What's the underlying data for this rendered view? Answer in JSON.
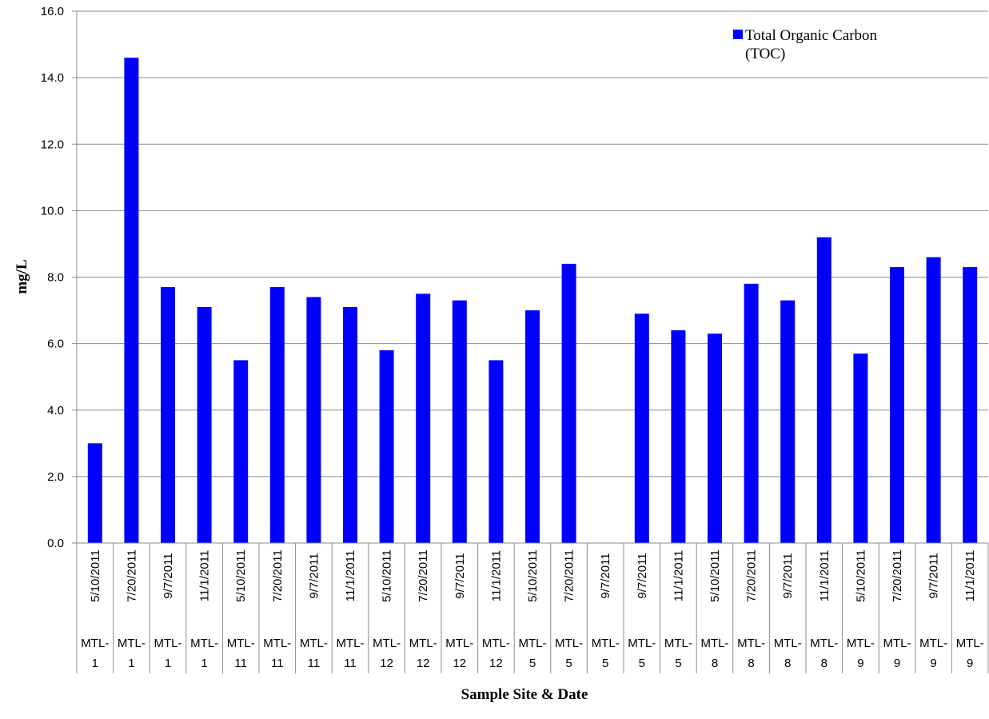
{
  "chart_data": {
    "type": "bar",
    "xlabel": "Sample Site & Date",
    "ylabel": "mg/L",
    "ylim": [
      0,
      16
    ],
    "yticks": [
      "0.0",
      "2.0",
      "4.0",
      "6.0",
      "8.0",
      "10.0",
      "12.0",
      "14.0",
      "16.0"
    ],
    "grid": true,
    "legend_position": "top-right",
    "bar_color": "#0000FF",
    "categories": [
      {
        "site": [
          "MTL-",
          "1"
        ],
        "date": "5/10/2011"
      },
      {
        "site": [
          "MTL-",
          "1"
        ],
        "date": "7/20/2011"
      },
      {
        "site": [
          "MTL-",
          "1"
        ],
        "date": "9/7/2011"
      },
      {
        "site": [
          "MTL-",
          "1"
        ],
        "date": "11/1/2011"
      },
      {
        "site": [
          "MTL-",
          "11"
        ],
        "date": "5/10/2011"
      },
      {
        "site": [
          "MTL-",
          "11"
        ],
        "date": "7/20/2011"
      },
      {
        "site": [
          "MTL-",
          "11"
        ],
        "date": "9/7/2011"
      },
      {
        "site": [
          "MTL-",
          "11"
        ],
        "date": "11/1/2011"
      },
      {
        "site": [
          "MTL-",
          "12"
        ],
        "date": "5/10/2011"
      },
      {
        "site": [
          "MTL-",
          "12"
        ],
        "date": "7/20/2011"
      },
      {
        "site": [
          "MTL-",
          "12"
        ],
        "date": "9/7/2011"
      },
      {
        "site": [
          "MTL-",
          "12"
        ],
        "date": "11/1/2011"
      },
      {
        "site": [
          "MTL-",
          "5"
        ],
        "date": "5/10/2011"
      },
      {
        "site": [
          "MTL-",
          "5"
        ],
        "date": "7/20/2011"
      },
      {
        "site": [
          "MTL-",
          "5"
        ],
        "date": "9/7/2011"
      },
      {
        "site": [
          "MTL-",
          "5"
        ],
        "date": "9/7/2011"
      },
      {
        "site": [
          "MTL-",
          "5"
        ],
        "date": "11/1/2011"
      },
      {
        "site": [
          "MTL-",
          "8"
        ],
        "date": "5/10/2011"
      },
      {
        "site": [
          "MTL-",
          "8"
        ],
        "date": "7/20/2011"
      },
      {
        "site": [
          "MTL-",
          "8"
        ],
        "date": "9/7/2011"
      },
      {
        "site": [
          "MTL-",
          "8"
        ],
        "date": "11/1/2011"
      },
      {
        "site": [
          "MTL-",
          "9"
        ],
        "date": "5/10/2011"
      },
      {
        "site": [
          "MTL-",
          "9"
        ],
        "date": "7/20/2011"
      },
      {
        "site": [
          "MTL-",
          "9"
        ],
        "date": "9/7/2011"
      },
      {
        "site": [
          "MTL-",
          "9"
        ],
        "date": "11/1/2011"
      }
    ],
    "series": [
      {
        "name": [
          "Total Organic Carbon",
          "(TOC)"
        ],
        "values": [
          3.0,
          14.6,
          7.7,
          7.1,
          5.5,
          7.7,
          7.4,
          7.1,
          5.8,
          7.5,
          7.3,
          5.5,
          7.0,
          8.4,
          null,
          6.9,
          6.4,
          6.3,
          7.8,
          7.3,
          9.2,
          5.7,
          8.3,
          8.6,
          8.3
        ]
      }
    ]
  }
}
